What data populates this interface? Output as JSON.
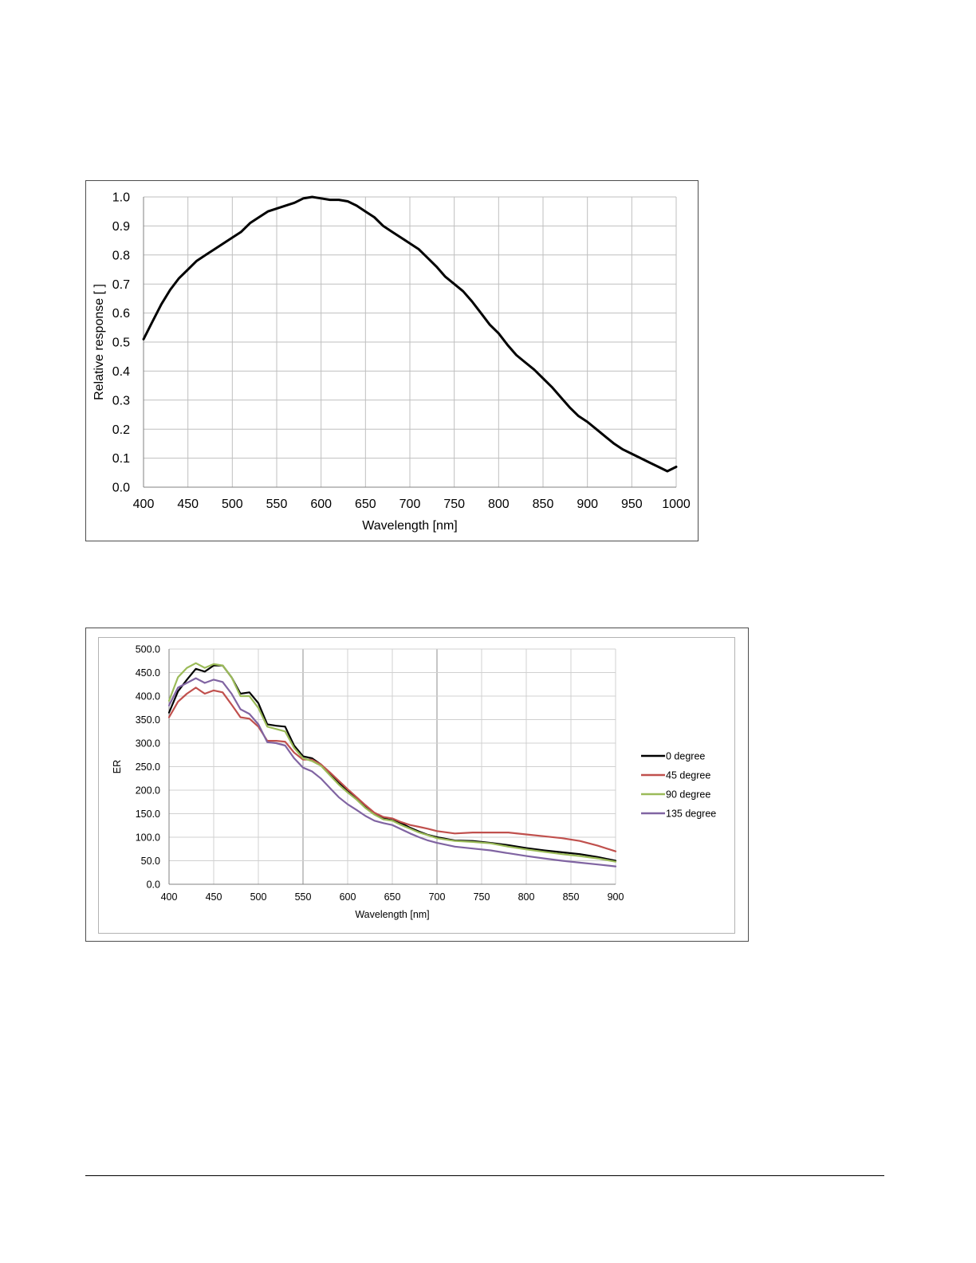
{
  "chart_data": [
    {
      "type": "line",
      "title": "",
      "xlabel": "Wavelength [nm]",
      "ylabel": "Relative response [ ]",
      "xlim": [
        400,
        1000
      ],
      "ylim": [
        0.0,
        1.0
      ],
      "x_ticks": [
        "400",
        "450",
        "500",
        "550",
        "600",
        "650",
        "700",
        "750",
        "800",
        "850",
        "900",
        "950",
        "1000"
      ],
      "y_ticks": [
        "0.0",
        "0.1",
        "0.2",
        "0.3",
        "0.4",
        "0.5",
        "0.6",
        "0.7",
        "0.8",
        "0.9",
        "1.0"
      ],
      "grid": true,
      "legend": "none",
      "series": [
        {
          "color": "#000000",
          "x": [
            400,
            410,
            420,
            430,
            440,
            450,
            460,
            470,
            480,
            490,
            500,
            510,
            520,
            530,
            540,
            550,
            560,
            570,
            580,
            590,
            600,
            610,
            620,
            630,
            640,
            650,
            660,
            670,
            680,
            690,
            700,
            710,
            720,
            730,
            740,
            750,
            760,
            770,
            780,
            790,
            800,
            810,
            820,
            830,
            840,
            850,
            860,
            870,
            880,
            890,
            900,
            910,
            920,
            930,
            940,
            950,
            960,
            970,
            980,
            990,
            1000
          ],
          "y": [
            0.51,
            0.57,
            0.63,
            0.68,
            0.72,
            0.75,
            0.78,
            0.8,
            0.82,
            0.84,
            0.86,
            0.88,
            0.91,
            0.93,
            0.95,
            0.96,
            0.97,
            0.98,
            0.995,
            1.0,
            0.995,
            0.99,
            0.99,
            0.985,
            0.97,
            0.95,
            0.93,
            0.9,
            0.88,
            0.86,
            0.84,
            0.82,
            0.79,
            0.76,
            0.725,
            0.7,
            0.675,
            0.64,
            0.6,
            0.56,
            0.53,
            0.49,
            0.455,
            0.43,
            0.405,
            0.375,
            0.345,
            0.31,
            0.275,
            0.245,
            0.225,
            0.2,
            0.175,
            0.15,
            0.13,
            0.115,
            0.1,
            0.085,
            0.07,
            0.055,
            0.07
          ]
        }
      ]
    },
    {
      "type": "line",
      "title": "",
      "xlabel": "Wavelength [nm]",
      "ylabel": "ER",
      "xlim": [
        400,
        900
      ],
      "ylim": [
        0.0,
        500.0
      ],
      "x_ticks": [
        "400",
        "450",
        "500",
        "550",
        "600",
        "650",
        "700",
        "750",
        "800",
        "850",
        "900"
      ],
      "y_ticks": [
        "0.0",
        "50.0",
        "100.0",
        "150.0",
        "200.0",
        "250.0",
        "300.0",
        "350.0",
        "400.0",
        "450.0",
        "500.0"
      ],
      "grid": true,
      "legend": "right",
      "x": [
        400,
        410,
        420,
        430,
        440,
        450,
        460,
        470,
        480,
        490,
        500,
        510,
        520,
        530,
        540,
        550,
        560,
        570,
        580,
        590,
        600,
        610,
        620,
        630,
        640,
        650,
        660,
        670,
        680,
        690,
        700,
        720,
        740,
        760,
        780,
        800,
        820,
        840,
        860,
        880,
        900
      ],
      "series": [
        {
          "name": "0 degree",
          "color": "#000000",
          "values": [
            365,
            410,
            435,
            458,
            452,
            465,
            465,
            440,
            405,
            408,
            385,
            340,
            337,
            335,
            295,
            272,
            268,
            255,
            235,
            215,
            200,
            182,
            165,
            150,
            140,
            136,
            130,
            120,
            112,
            105,
            100,
            93,
            92,
            88,
            83,
            77,
            72,
            68,
            64,
            58,
            50
          ]
        },
        {
          "name": "45 degree",
          "color": "#c0504d",
          "values": [
            355,
            388,
            405,
            418,
            405,
            412,
            408,
            382,
            355,
            352,
            335,
            305,
            305,
            303,
            280,
            265,
            265,
            255,
            238,
            220,
            202,
            185,
            168,
            152,
            143,
            140,
            132,
            126,
            122,
            118,
            113,
            108,
            110,
            110,
            110,
            106,
            102,
            98,
            92,
            82,
            70
          ]
        },
        {
          "name": "90 degree",
          "color": "#9bbb59",
          "values": [
            390,
            440,
            460,
            470,
            460,
            468,
            465,
            440,
            400,
            400,
            375,
            335,
            330,
            325,
            290,
            268,
            262,
            252,
            232,
            212,
            195,
            180,
            162,
            148,
            138,
            135,
            126,
            118,
            110,
            104,
            98,
            92,
            90,
            87,
            80,
            74,
            69,
            64,
            60,
            55,
            48
          ]
        },
        {
          "name": "135 degree",
          "color": "#8064a2",
          "values": [
            380,
            418,
            428,
            438,
            428,
            435,
            430,
            405,
            372,
            362,
            340,
            302,
            300,
            295,
            268,
            248,
            240,
            225,
            205,
            185,
            170,
            158,
            145,
            135,
            130,
            126,
            117,
            108,
            100,
            93,
            88,
            80,
            76,
            72,
            66,
            60,
            55,
            50,
            46,
            42,
            38
          ]
        }
      ]
    }
  ]
}
